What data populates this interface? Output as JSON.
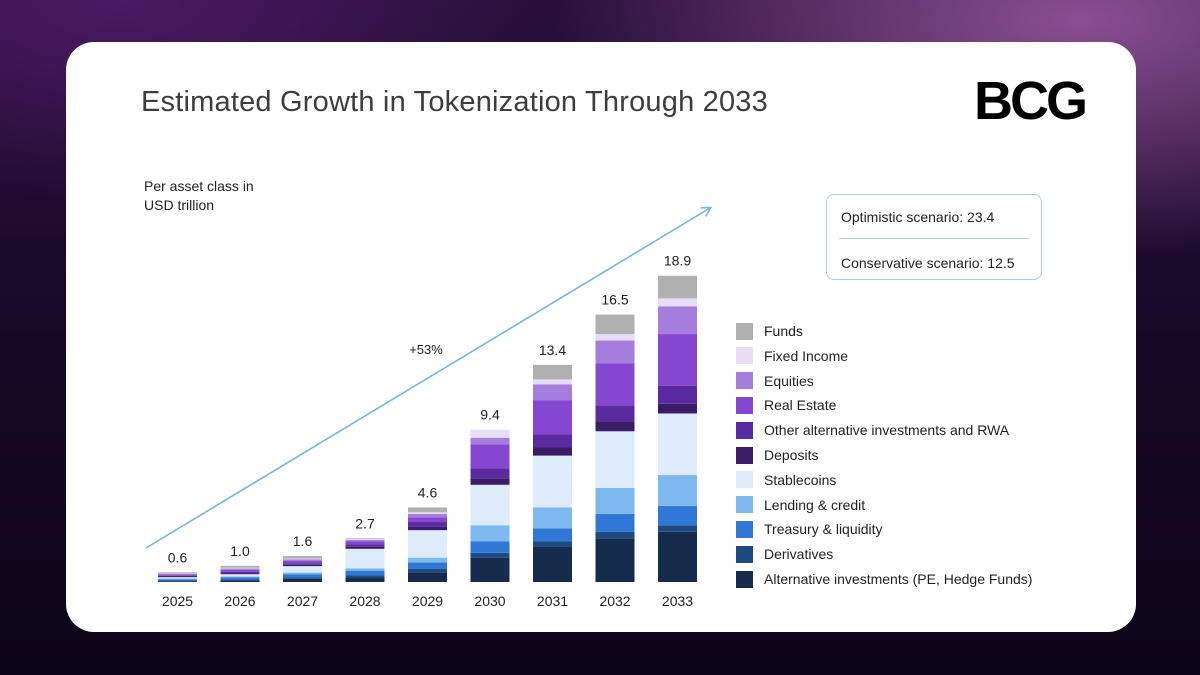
{
  "title": "Estimated Growth in Tokenization Through 2033",
  "logo_text": "BCG",
  "unit_label": "Per asset class in USD trillion",
  "scenarios": {
    "optimistic": "Optimistic scenario: 23.4",
    "conservative": "Conservative scenario: 12.5"
  },
  "chart_data": {
    "type": "bar",
    "stacked": true,
    "categories": [
      "2025",
      "2026",
      "2027",
      "2028",
      "2029",
      "2030",
      "2031",
      "2032",
      "2033"
    ],
    "totals": [
      0.6,
      1.0,
      1.6,
      2.7,
      4.6,
      9.4,
      13.4,
      16.5,
      18.9
    ],
    "total_labels": [
      "0.6",
      "1.0",
      "1.6",
      "2.7",
      "4.6",
      "9.4",
      "13.4",
      "16.5",
      "18.9"
    ],
    "ylim": [
      0,
      19.5
    ],
    "growth_annotation": "+53%",
    "grid": false,
    "legend_position": "right",
    "series": [
      {
        "name": "Alternative investments (PE, Hedge Funds)",
        "color": "#152c4d",
        "values": [
          0.05,
          0.1,
          0.2,
          0.3,
          0.6,
          1.5,
          2.2,
          2.7,
          3.1
        ]
      },
      {
        "name": "Derivatives",
        "color": "#1e4a82",
        "values": [
          0.04,
          0.06,
          0.08,
          0.1,
          0.2,
          0.3,
          0.3,
          0.4,
          0.4
        ]
      },
      {
        "name": "Treasury & liquidity",
        "color": "#3178d6",
        "values": [
          0.08,
          0.12,
          0.2,
          0.3,
          0.4,
          0.7,
          0.8,
          1.1,
          1.2
        ]
      },
      {
        "name": "Lending & credit",
        "color": "#7db8ee",
        "values": [
          0.04,
          0.06,
          0.1,
          0.15,
          0.3,
          1.0,
          1.3,
          1.6,
          1.9
        ]
      },
      {
        "name": "Stablecoins",
        "color": "#ddebfa",
        "values": [
          0.09,
          0.14,
          0.4,
          1.2,
          1.7,
          2.5,
          3.2,
          3.5,
          3.8
        ]
      },
      {
        "name": "Deposits",
        "color": "#3b1c66",
        "values": [
          0.04,
          0.07,
          0.08,
          0.12,
          0.2,
          0.4,
          0.5,
          0.6,
          0.6
        ]
      },
      {
        "name": "Other alternative investments and RWA",
        "color": "#5a2aa0",
        "values": [
          0.05,
          0.08,
          0.1,
          0.15,
          0.3,
          0.6,
          0.8,
          1.0,
          1.1
        ]
      },
      {
        "name": "Real Estate",
        "color": "#8547cf",
        "values": [
          0.07,
          0.12,
          0.14,
          0.18,
          0.3,
          1.5,
          2.1,
          2.6,
          3.2
        ]
      },
      {
        "name": "Equities",
        "color": "#a47ddd",
        "values": [
          0.04,
          0.08,
          0.1,
          0.1,
          0.2,
          0.4,
          1.0,
          1.4,
          1.7
        ]
      },
      {
        "name": "Fixed Income",
        "color": "#e8dcf6",
        "values": [
          0.02,
          0.05,
          0.05,
          0.05,
          0.1,
          0.5,
          0.3,
          0.4,
          0.5
        ]
      },
      {
        "name": "Funds",
        "color": "#b0b0b0",
        "values": [
          0.08,
          0.12,
          0.15,
          0.05,
          0.3,
          0.0,
          0.9,
          1.2,
          1.4
        ]
      }
    ]
  }
}
